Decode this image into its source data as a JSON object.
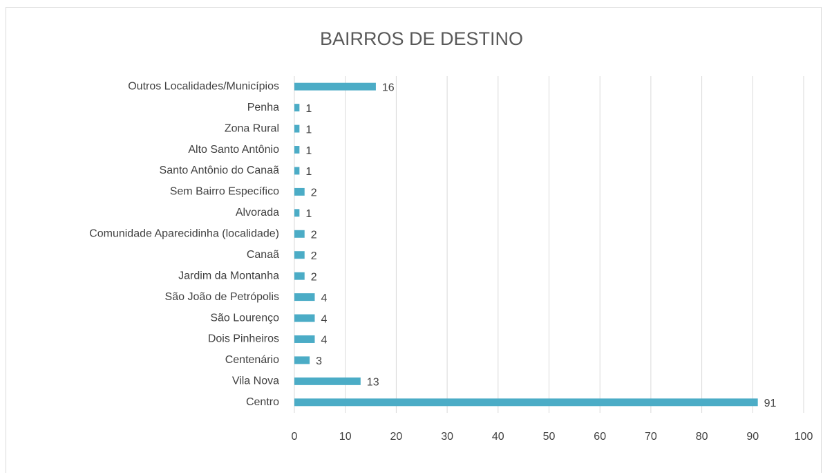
{
  "chart_data": {
    "type": "bar",
    "orientation": "horizontal",
    "title": "BAIRROS DE DESTINO",
    "categories": [
      "Outros Localidades/Municípios",
      "Penha",
      "Zona Rural",
      "Alto Santo Antônio",
      "Santo Antônio do Canaã",
      "Sem Bairro Específico",
      "Alvorada",
      "Comunidade Aparecidinha (localidade)",
      "Canaã",
      "Jardim da Montanha",
      "São João de Petrópolis",
      "São Lourenço",
      "Dois Pinheiros",
      "Centenário",
      "Vila Nova",
      "Centro"
    ],
    "values": [
      16,
      1,
      1,
      1,
      1,
      2,
      1,
      2,
      2,
      2,
      4,
      4,
      4,
      3,
      13,
      91
    ],
    "color": "#4bacc6",
    "xlim": [
      0,
      100
    ],
    "xticks": [
      0,
      10,
      20,
      30,
      40,
      50,
      60,
      70,
      80,
      90,
      100
    ],
    "grid": true
  }
}
